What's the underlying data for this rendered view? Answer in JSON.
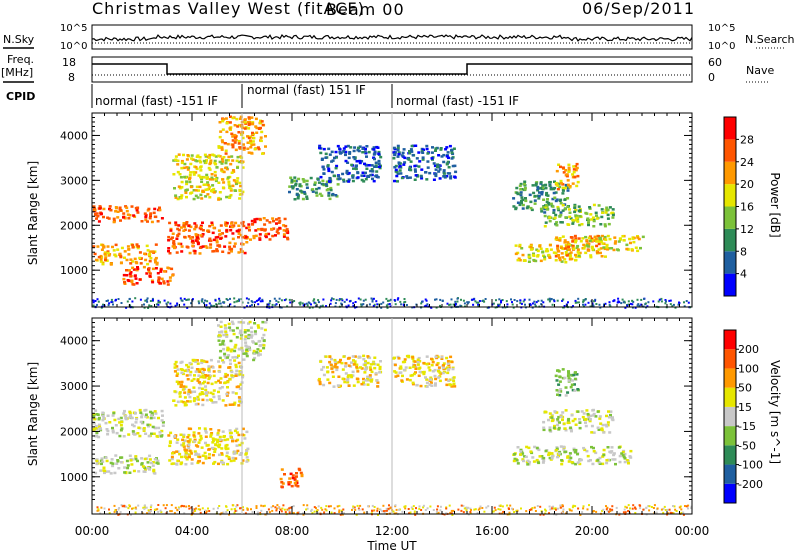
{
  "header": {
    "radar": "Christmas Valley West (fitACF)",
    "beam": "Beam 00",
    "date": "06/Sep/2011"
  },
  "status": {
    "nsky_label": "N.Sky",
    "nsky_ticks": [
      "10^5",
      "10^0"
    ],
    "nsearch_label": "N.Search",
    "nsearch_ticks": [
      "10^5",
      "10^0"
    ],
    "freq_label": "Freq.",
    "freq_unit": "[MHz]",
    "freq_ticks": [
      "18",
      "8"
    ],
    "nave_label": "Nave",
    "nave_ticks": [
      "60",
      "0"
    ],
    "cpid_label": "CPID",
    "cpid_segments": [
      "normal (fast) -151 IF",
      "normal (fast) 151 IF",
      "normal (fast) -151 IF"
    ]
  },
  "chart_data": [
    {
      "type": "heatmap",
      "name": "power",
      "ylabel": "Slant Range [km]",
      "xlabel": "Time UT",
      "x_ticks": [
        "00:00",
        "04:00",
        "08:00",
        "12:00",
        "16:00",
        "20:00",
        "00:00"
      ],
      "xlim_hours": [
        0,
        24
      ],
      "ylim_km": [
        180,
        4500
      ],
      "y_ticks": [
        1000,
        2000,
        3000,
        4000
      ],
      "colorbar": {
        "label": "Power [dB]",
        "ticks": [
          "4",
          "8",
          "12",
          "16",
          "20",
          "24",
          "28"
        ],
        "colors": [
          "#0000ff",
          "#1f5fa0",
          "#2e8b57",
          "#7cc23a",
          "#e6e600",
          "#ff9900",
          "#ff5500",
          "#ff0000"
        ]
      },
      "regions": [
        {
          "t0": 0.0,
          "t1": 2.8,
          "r0": 2100,
          "r1": 2450,
          "level": 6
        },
        {
          "t0": 0.0,
          "t1": 2.6,
          "r0": 1150,
          "r1": 1600,
          "level": 5
        },
        {
          "t0": 1.2,
          "t1": 3.2,
          "r0": 700,
          "r1": 1100,
          "level": 6
        },
        {
          "t0": 3.0,
          "t1": 6.2,
          "r0": 1400,
          "r1": 2100,
          "level": 6
        },
        {
          "t0": 3.2,
          "t1": 6.0,
          "r0": 2600,
          "r1": 3600,
          "level": 4
        },
        {
          "t0": 5.0,
          "t1": 6.9,
          "r0": 3600,
          "r1": 4450,
          "level": 5
        },
        {
          "t0": 6.2,
          "t1": 7.8,
          "r0": 1700,
          "r1": 2200,
          "level": 6
        },
        {
          "t0": 7.8,
          "t1": 9.8,
          "r0": 2600,
          "r1": 3100,
          "level": 2
        },
        {
          "t0": 9.0,
          "t1": 11.5,
          "r0": 3000,
          "r1": 3800,
          "level": 1
        },
        {
          "t0": 12.0,
          "t1": 14.5,
          "r0": 3000,
          "r1": 3800,
          "level": 1
        },
        {
          "t0": 16.8,
          "t1": 19.0,
          "r0": 2300,
          "r1": 3000,
          "level": 2
        },
        {
          "t0": 16.8,
          "t1": 19.5,
          "r0": 1200,
          "r1": 1600,
          "level": 4
        },
        {
          "t0": 18.5,
          "t1": 20.5,
          "r0": 1300,
          "r1": 1800,
          "level": 5
        },
        {
          "t0": 19.5,
          "t1": 22.0,
          "r0": 1450,
          "r1": 1800,
          "level": 4
        },
        {
          "t0": 18.0,
          "t1": 20.8,
          "r0": 2000,
          "r1": 2500,
          "level": 3
        },
        {
          "t0": 18.5,
          "t1": 19.4,
          "r0": 2800,
          "r1": 3400,
          "level": 5
        }
      ]
    },
    {
      "type": "heatmap",
      "name": "velocity",
      "ylabel": "Slant Range [km]",
      "xlabel": "Time UT",
      "x_ticks": [
        "00:00",
        "04:00",
        "08:00",
        "12:00",
        "16:00",
        "20:00",
        "00:00"
      ],
      "xlim_hours": [
        0,
        24
      ],
      "ylim_km": [
        180,
        4500
      ],
      "y_ticks": [
        1000,
        2000,
        3000,
        4000
      ],
      "colorbar": {
        "label": "Velocity [m s^-1]",
        "ticks": [
          "200",
          "100",
          "50",
          "15",
          "-15",
          "-50",
          "-100",
          "-200"
        ],
        "colors": [
          "#0000ff",
          "#1f5fa0",
          "#2e8b57",
          "#7cc23a",
          "#c8c8c8",
          "#e6e600",
          "#ff9900",
          "#ff5500",
          "#ff0000"
        ]
      },
      "regions": [
        {
          "t0": 0.0,
          "t1": 2.8,
          "r0": 1900,
          "r1": 2500,
          "level": 4
        },
        {
          "t0": 0.0,
          "t1": 2.6,
          "r0": 1100,
          "r1": 1500,
          "level": 4
        },
        {
          "t0": 3.0,
          "t1": 6.2,
          "r0": 1300,
          "r1": 2100,
          "level": 5
        },
        {
          "t0": 3.2,
          "t1": 6.0,
          "r0": 2600,
          "r1": 3600,
          "level": 5
        },
        {
          "t0": 5.0,
          "t1": 6.9,
          "r0": 3600,
          "r1": 4450,
          "level": 4
        },
        {
          "t0": 7.5,
          "t1": 8.4,
          "r0": 800,
          "r1": 1200,
          "level": 7
        },
        {
          "t0": 9.0,
          "t1": 11.5,
          "r0": 3000,
          "r1": 3700,
          "level": 5
        },
        {
          "t0": 12.0,
          "t1": 14.5,
          "r0": 3000,
          "r1": 3700,
          "level": 5
        },
        {
          "t0": 16.8,
          "t1": 21.5,
          "r0": 1300,
          "r1": 1700,
          "level": 4
        },
        {
          "t0": 18.0,
          "t1": 20.8,
          "r0": 2000,
          "r1": 2500,
          "level": 4
        },
        {
          "t0": 18.5,
          "t1": 19.4,
          "r0": 2800,
          "r1": 3400,
          "level": 3
        }
      ]
    }
  ]
}
